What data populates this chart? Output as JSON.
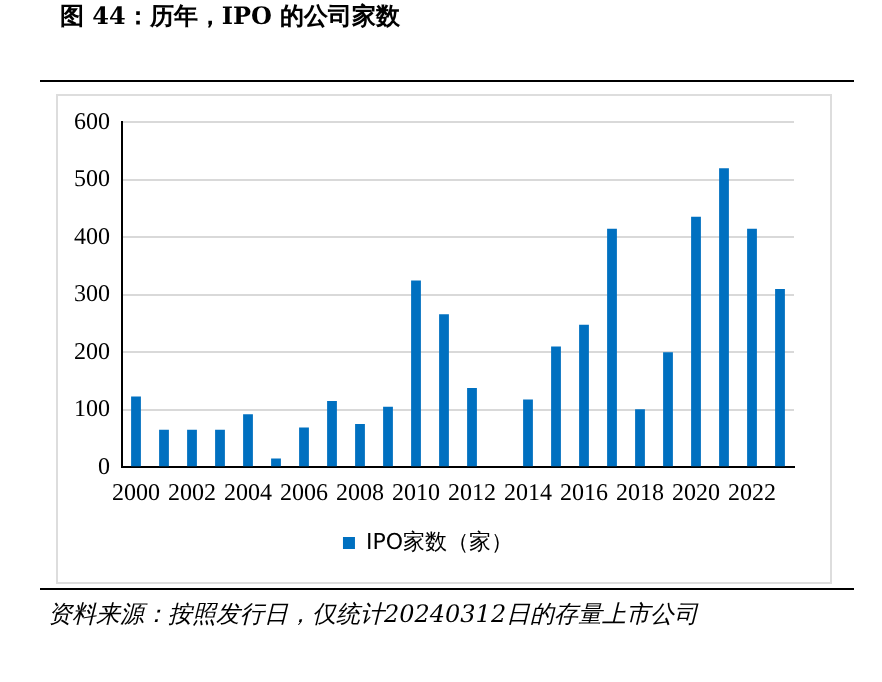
{
  "chart_data": {
    "type": "bar",
    "title": "图 44：历年，IPO 的公司家数",
    "categories": [
      "2000",
      null,
      "2002",
      null,
      "2004",
      null,
      "2006",
      null,
      "2008",
      null,
      "2010",
      null,
      "2012",
      null,
      "2014",
      null,
      "2016",
      null,
      "2018",
      null,
      "2020",
      null,
      "2022",
      null
    ],
    "series": [
      {
        "name": "IPO家数（家）",
        "color": "#0070c0",
        "values": [
          123,
          65,
          65,
          65,
          92,
          15,
          69,
          115,
          75,
          105,
          325,
          266,
          138,
          0,
          118,
          210,
          248,
          415,
          101,
          200,
          436,
          520,
          415,
          310
        ]
      }
    ],
    "ylim": [
      0,
      600
    ],
    "yticks": [
      0,
      100,
      200,
      300,
      400,
      500,
      600
    ],
    "grid": "y",
    "legend": "bottom",
    "annotations": [
      "资料来源：按照发行日，仅统计20240312日的存量上市公司"
    ]
  }
}
